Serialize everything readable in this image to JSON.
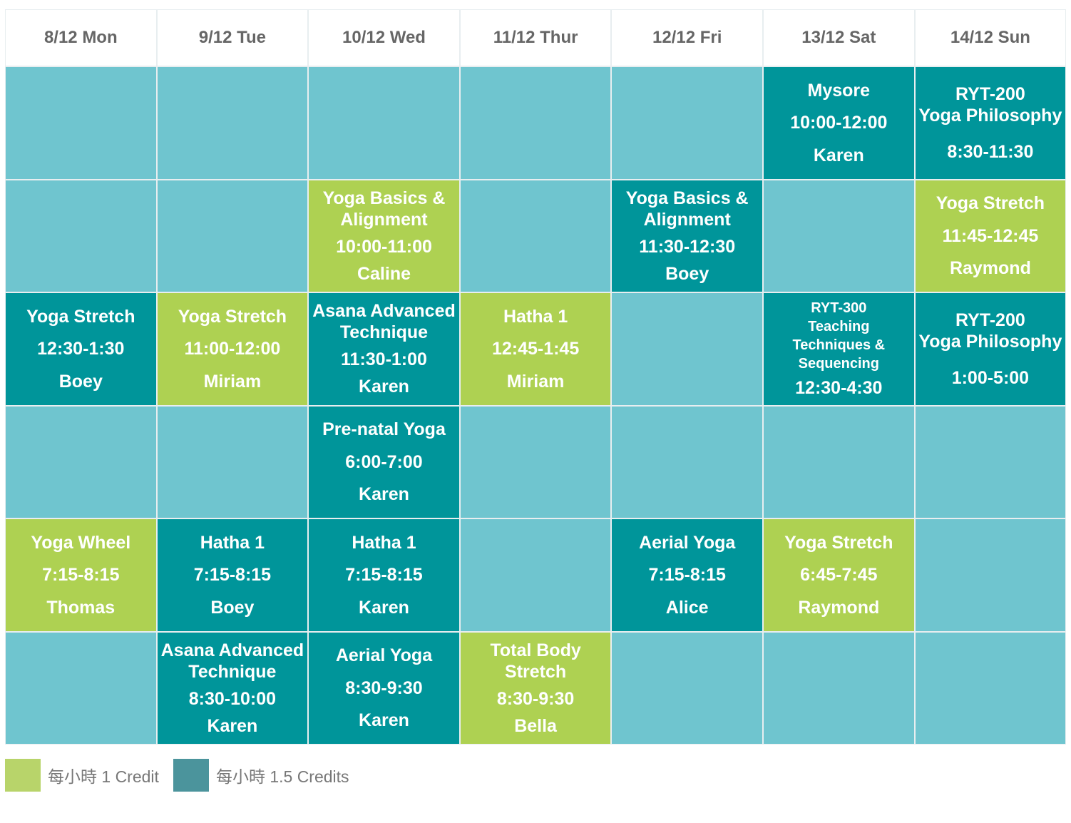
{
  "colors": {
    "empty": "#6fc5cf",
    "light": "#aed152",
    "dark": "#00959a",
    "legend_light": "#b8d46a",
    "legend_dark": "#4b949c"
  },
  "days": [
    "8/12 Mon",
    "9/12 Tue",
    "10/12 Wed",
    "11/12 Thur",
    "12/12 Fri",
    "13/12 Sat",
    "14/12 Sun"
  ],
  "rows": [
    [
      {
        "color": "empty"
      },
      {
        "color": "empty"
      },
      {
        "color": "empty"
      },
      {
        "color": "empty"
      },
      {
        "color": "empty"
      },
      {
        "color": "dark",
        "title": "Mysore",
        "time": "10:00-12:00",
        "teacher": "Karen"
      },
      {
        "color": "dark",
        "title": "RYT-200\nYoga Philosophy",
        "time": "8:30-11:30"
      }
    ],
    [
      {
        "color": "empty"
      },
      {
        "color": "empty"
      },
      {
        "color": "light",
        "title": "Yoga Basics &\nAlignment",
        "time": "10:00-11:00",
        "teacher": "Caline"
      },
      {
        "color": "empty"
      },
      {
        "color": "dark",
        "title": "Yoga Basics &\nAlignment",
        "time": "11:30-12:30",
        "teacher": "Boey"
      },
      {
        "color": "empty"
      },
      {
        "color": "light",
        "title": "Yoga Stretch",
        "time": "11:45-12:45",
        "teacher": "Raymond"
      }
    ],
    [
      {
        "color": "dark",
        "title": "Yoga Stretch",
        "time": "12:30-1:30",
        "teacher": "Boey"
      },
      {
        "color": "light",
        "title": "Yoga Stretch",
        "time": "11:00-12:00",
        "teacher": "Miriam"
      },
      {
        "color": "dark",
        "title": "Asana Advanced\nTechnique",
        "time": "11:30-1:00",
        "teacher": "Karen"
      },
      {
        "color": "light",
        "title": "Hatha 1",
        "time": "12:45-1:45",
        "teacher": "Miriam"
      },
      {
        "color": "empty"
      },
      {
        "color": "dark",
        "title": "RYT-300\nTeaching\nTechniques &\nSequencing",
        "time": "12:30-4:30",
        "small": true
      },
      {
        "color": "dark",
        "title": "RYT-200\nYoga Philosophy",
        "time": "1:00-5:00"
      }
    ],
    [
      {
        "color": "empty"
      },
      {
        "color": "empty"
      },
      {
        "color": "dark",
        "title": "Pre-natal Yoga",
        "time": "6:00-7:00",
        "teacher": "Karen"
      },
      {
        "color": "empty"
      },
      {
        "color": "empty"
      },
      {
        "color": "empty"
      },
      {
        "color": "empty"
      }
    ],
    [
      {
        "color": "light",
        "title": "Yoga Wheel",
        "time": "7:15-8:15",
        "teacher": "Thomas"
      },
      {
        "color": "dark",
        "title": "Hatha 1",
        "time": "7:15-8:15",
        "teacher": "Boey"
      },
      {
        "color": "dark",
        "title": "Hatha 1",
        "time": "7:15-8:15",
        "teacher": "Karen"
      },
      {
        "color": "empty"
      },
      {
        "color": "dark",
        "title": "Aerial Yoga",
        "time": "7:15-8:15",
        "teacher": "Alice"
      },
      {
        "color": "light",
        "title": "Yoga Stretch",
        "time": "6:45-7:45",
        "teacher": "Raymond"
      },
      {
        "color": "empty"
      }
    ],
    [
      {
        "color": "empty"
      },
      {
        "color": "dark",
        "title": "Asana Advanced\nTechnique",
        "time": "8:30-10:00",
        "teacher": "Karen"
      },
      {
        "color": "dark",
        "title": "Aerial Yoga",
        "time": "8:30-9:30",
        "teacher": "Karen"
      },
      {
        "color": "light",
        "title": "Total Body\nStretch",
        "time": "8:30-9:30",
        "teacher": "Bella"
      },
      {
        "color": "empty"
      },
      {
        "color": "empty"
      },
      {
        "color": "empty"
      }
    ]
  ],
  "legend": [
    {
      "color": "legend_light",
      "label": "每小時 1 Credit"
    },
    {
      "color": "legend_dark",
      "label": "每小時 1.5 Credits"
    }
  ]
}
